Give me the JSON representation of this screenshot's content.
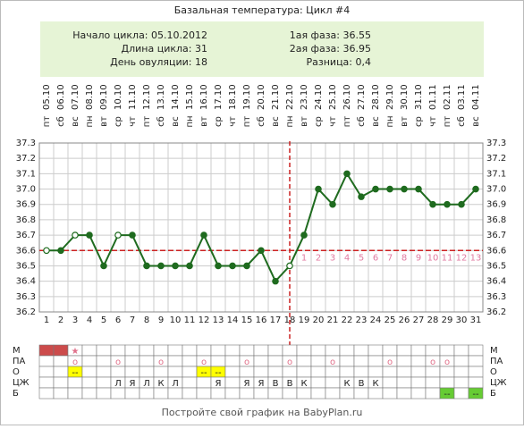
{
  "chart_data": {
    "type": "line",
    "title": "Базальная температура: Цикл #4",
    "info": {
      "left": [
        "Начало цикла: 05.10.2012",
        "Длина цикла: 31",
        "День овуляции: 18"
      ],
      "right": [
        "1ая фаза: 36.55",
        "2ая фаза: 36.95",
        "Разница: 0,4"
      ]
    },
    "categories": [
      1,
      2,
      3,
      4,
      5,
      6,
      7,
      8,
      9,
      10,
      11,
      12,
      13,
      14,
      15,
      16,
      17,
      18,
      19,
      20,
      21,
      22,
      23,
      24,
      25,
      26,
      27,
      28,
      29,
      30,
      31
    ],
    "dates": [
      "05.10",
      "06.10",
      "07.10",
      "08.10",
      "09.10",
      "10.10",
      "11.10",
      "12.10",
      "13.10",
      "14.10",
      "15.10",
      "16.10",
      "17.10",
      "18.10",
      "19.10",
      "20.10",
      "21.10",
      "22.10",
      "23.10",
      "24.10",
      "25.10",
      "26.10",
      "27.10",
      "28.10",
      "29.10",
      "30.10",
      "31.10",
      "01.11",
      "02.11",
      "03.11",
      "04.11"
    ],
    "weekdays": [
      "пт",
      "сб",
      "вс",
      "пн",
      "вт",
      "ср",
      "чт",
      "пт",
      "сб",
      "вс",
      "пн",
      "вт",
      "ср",
      "чт",
      "пт",
      "сб",
      "вс",
      "пн",
      "вт",
      "ср",
      "чт",
      "пт",
      "сб",
      "вс",
      "пн",
      "вт",
      "ср",
      "чт",
      "пт",
      "сб",
      "вс"
    ],
    "values": [
      36.6,
      36.6,
      36.7,
      36.7,
      36.5,
      36.7,
      36.7,
      36.5,
      36.5,
      36.5,
      36.5,
      36.7,
      36.5,
      36.5,
      36.5,
      36.6,
      36.4,
      36.5,
      36.7,
      37.0,
      36.9,
      37.1,
      36.95,
      37.0,
      37.0,
      37.0,
      37.0,
      36.9,
      36.9,
      36.9,
      37.0
    ],
    "open_markers": [
      true,
      false,
      true,
      false,
      false,
      true,
      false,
      false,
      false,
      false,
      false,
      false,
      false,
      false,
      false,
      false,
      false,
      true,
      false,
      false,
      false,
      false,
      false,
      false,
      false,
      false,
      false,
      false,
      false,
      false,
      false
    ],
    "color": "#1f6b1f",
    "coverline": 36.6,
    "ovulation_day": 18,
    "post_ovulation_days": [
      1,
      2,
      3,
      4,
      5,
      6,
      7,
      8,
      9,
      10,
      11,
      12,
      13
    ],
    "ylim": [
      36.2,
      37.3
    ],
    "yticks": [
      36.2,
      36.3,
      36.4,
      36.5,
      36.6,
      36.7,
      36.8,
      36.9,
      37.0,
      37.1,
      37.2,
      37.3
    ],
    "grid": true,
    "footer": "Постройте свой график на BabyPlan.ru",
    "table": {
      "rows": [
        {
          "label": "М",
          "cells": [
            null,
            null,
            "★",
            null,
            null,
            null,
            null,
            null,
            null,
            null,
            null,
            null,
            null,
            null,
            null,
            null,
            null,
            null,
            null,
            null,
            null,
            null,
            null,
            null,
            null,
            null,
            null,
            null,
            null,
            null,
            null
          ],
          "fill": [
            "#cc4b4b",
            "#cc4b4b",
            null,
            null,
            null,
            null,
            null,
            null,
            null,
            null,
            null,
            null,
            null,
            null,
            null,
            null,
            null,
            null,
            null,
            null,
            null,
            null,
            null,
            null,
            null,
            null,
            null,
            null,
            null,
            null,
            null
          ]
        },
        {
          "label": "ПА",
          "cells": [
            null,
            null,
            "o",
            null,
            null,
            "o",
            null,
            null,
            "o",
            null,
            null,
            "o",
            null,
            null,
            "o",
            null,
            null,
            "o",
            null,
            null,
            "o",
            null,
            null,
            null,
            "o",
            null,
            null,
            "o",
            "o",
            null,
            null
          ]
        },
        {
          "label": "О",
          "cells": [
            null,
            null,
            "--",
            null,
            null,
            null,
            null,
            null,
            null,
            null,
            null,
            "--",
            "--",
            null,
            null,
            null,
            null,
            null,
            null,
            null,
            null,
            null,
            null,
            null,
            null,
            null,
            null,
            null,
            null,
            null,
            null
          ],
          "fill": [
            null,
            null,
            "#ffff00",
            null,
            null,
            null,
            null,
            null,
            null,
            null,
            null,
            "#ffff00",
            "#ffff00",
            null,
            null,
            null,
            null,
            null,
            null,
            null,
            null,
            null,
            null,
            null,
            null,
            null,
            null,
            null,
            null,
            null,
            null
          ]
        },
        {
          "label": "ЦЖ",
          "cells": [
            null,
            null,
            null,
            null,
            null,
            "Л",
            "Я",
            "Л",
            "К",
            "Л",
            null,
            null,
            "Я",
            null,
            "Я",
            "Я",
            "В",
            "В",
            "К",
            null,
            null,
            "К",
            "В",
            "К",
            null,
            null,
            null,
            null,
            null,
            null,
            null
          ]
        },
        {
          "label": "Б",
          "cells": [
            null,
            null,
            null,
            null,
            null,
            null,
            null,
            null,
            null,
            null,
            null,
            null,
            null,
            null,
            null,
            null,
            null,
            null,
            null,
            null,
            null,
            null,
            null,
            null,
            null,
            null,
            null,
            null,
            "--",
            null,
            "--"
          ],
          "fill": [
            null,
            null,
            null,
            null,
            null,
            null,
            null,
            null,
            null,
            null,
            null,
            null,
            null,
            null,
            null,
            null,
            null,
            null,
            null,
            null,
            null,
            null,
            null,
            null,
            null,
            null,
            null,
            null,
            "#66cc33",
            null,
            "#66cc33"
          ]
        }
      ]
    }
  }
}
